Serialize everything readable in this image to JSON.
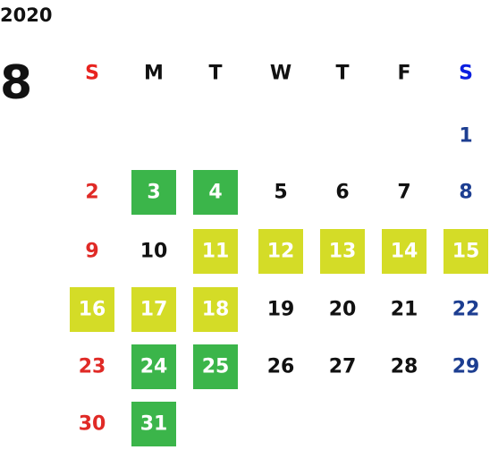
{
  "year": "2020",
  "month": "8",
  "weekdays": [
    {
      "label": "S",
      "color": "#e8231f"
    },
    {
      "label": "M",
      "color": "#111111"
    },
    {
      "label": "T",
      "color": "#111111"
    },
    {
      "label": "W",
      "color": "#111111"
    },
    {
      "label": "T",
      "color": "#111111"
    },
    {
      "label": "F",
      "color": "#111111"
    },
    {
      "label": "S",
      "color": "#0b1fe0"
    }
  ],
  "day_colors": [
    "#e02a26",
    "#111111",
    "#111111",
    "#111111",
    "#111111",
    "#111111",
    "#1d3e91"
  ],
  "weeks": [
    [
      null,
      null,
      null,
      null,
      null,
      null,
      {
        "day": 1
      }
    ],
    [
      {
        "day": 2
      },
      {
        "day": 3,
        "fill": "#3bb54a"
      },
      {
        "day": 4,
        "fill": "#3bb54a"
      },
      {
        "day": 5
      },
      {
        "day": 6
      },
      {
        "day": 7
      },
      {
        "day": 8
      }
    ],
    [
      {
        "day": 9
      },
      {
        "day": 10
      },
      {
        "day": 11,
        "fill": "#d4dc27"
      },
      {
        "day": 12,
        "fill": "#d4dc27"
      },
      {
        "day": 13,
        "fill": "#d4dc27"
      },
      {
        "day": 14,
        "fill": "#d4dc27"
      },
      {
        "day": 15,
        "fill": "#d4dc27"
      }
    ],
    [
      {
        "day": 16,
        "fill": "#d4dc27"
      },
      {
        "day": 17,
        "fill": "#d4dc27"
      },
      {
        "day": 18,
        "fill": "#d4dc27"
      },
      {
        "day": 19
      },
      {
        "day": 20
      },
      {
        "day": 21
      },
      {
        "day": 22
      }
    ],
    [
      {
        "day": 23
      },
      {
        "day": 24,
        "fill": "#3bb54a"
      },
      {
        "day": 25,
        "fill": "#3bb54a"
      },
      {
        "day": 26
      },
      {
        "day": 27
      },
      {
        "day": 28
      },
      {
        "day": 29
      }
    ],
    [
      {
        "day": 30
      },
      {
        "day": 31,
        "fill": "#3bb54a"
      },
      null,
      null,
      null,
      null,
      null
    ]
  ]
}
